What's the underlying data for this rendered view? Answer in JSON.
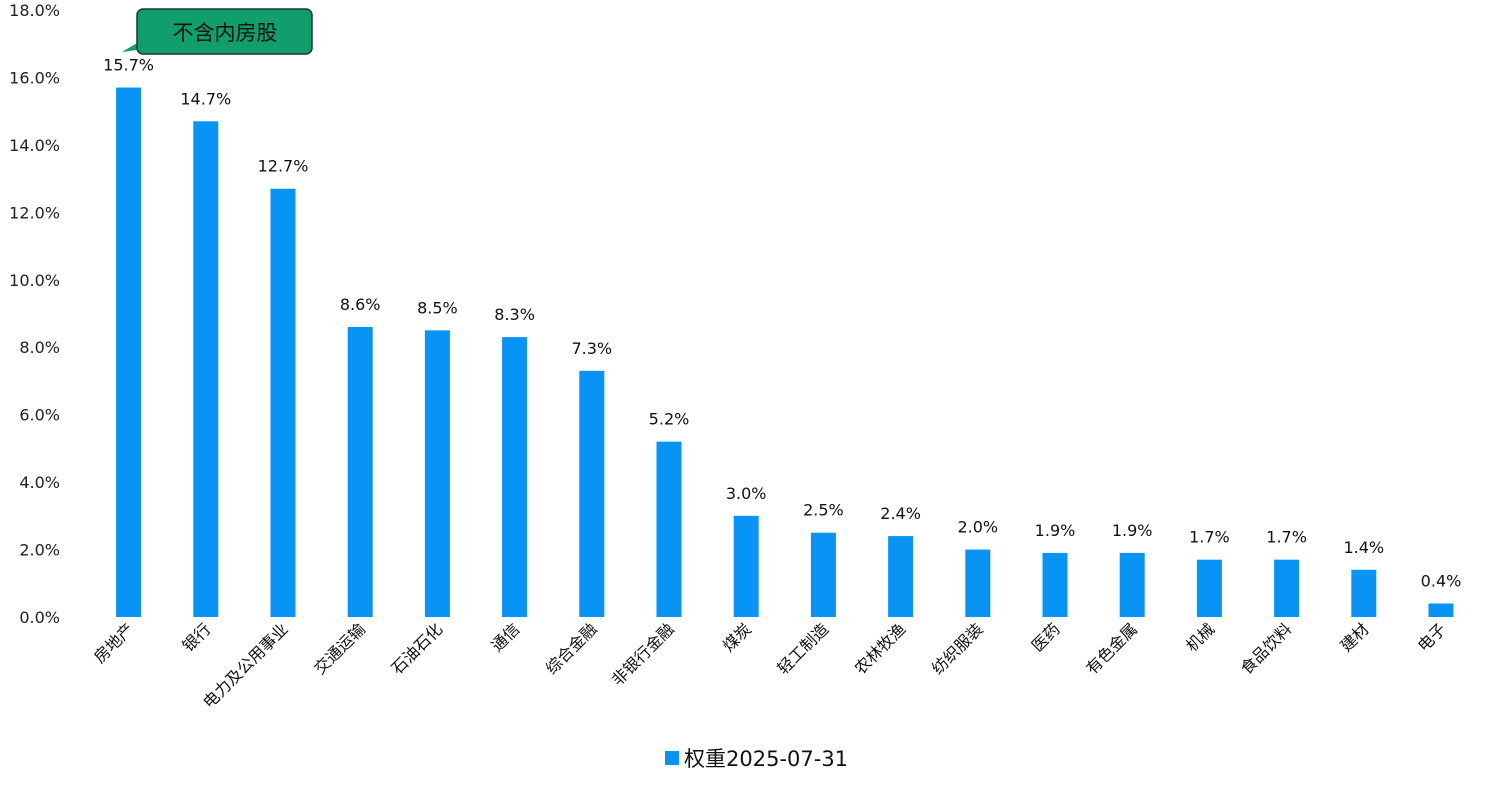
{
  "chart_data": {
    "type": "bar",
    "categories": [
      "房地产",
      "银行",
      "电力及公用事业",
      "交通运输",
      "石油石化",
      "通信",
      "综合金融",
      "非银行金融",
      "煤炭",
      "轻工制造",
      "农林牧渔",
      "纺织服装",
      "医药",
      "有色金属",
      "机械",
      "食品饮料",
      "建材",
      "电子"
    ],
    "series": [
      {
        "name": "权重2025-07-31",
        "values": [
          15.7,
          14.7,
          12.7,
          8.6,
          8.5,
          8.3,
          7.3,
          5.2,
          3.0,
          2.5,
          2.4,
          2.0,
          1.9,
          1.9,
          1.7,
          1.7,
          1.4,
          0.4
        ],
        "labels": [
          "15.7%",
          "14.7%",
          "12.7%",
          "8.6%",
          "8.5%",
          "8.3%",
          "7.3%",
          "5.2%",
          "3.0%",
          "2.5%",
          "2.4%",
          "2.0%",
          "1.9%",
          "1.9%",
          "1.7%",
          "1.7%",
          "1.4%",
          "0.4%"
        ]
      }
    ],
    "yticks": [
      "0.0%",
      "2.0%",
      "4.0%",
      "6.0%",
      "8.0%",
      "10.0%",
      "12.0%",
      "14.0%",
      "16.0%",
      "18.0%"
    ],
    "ylim": [
      0,
      18
    ],
    "grid": false,
    "legend_position": "bottom",
    "title": "",
    "xlabel": "",
    "ylabel": "",
    "annotation": {
      "text": "不含内房股",
      "target_category": "房地产"
    }
  },
  "colors": {
    "bar": "#0894F4",
    "callout_fill": "#0F9E6C",
    "callout_stroke": "#1a3a2a"
  }
}
